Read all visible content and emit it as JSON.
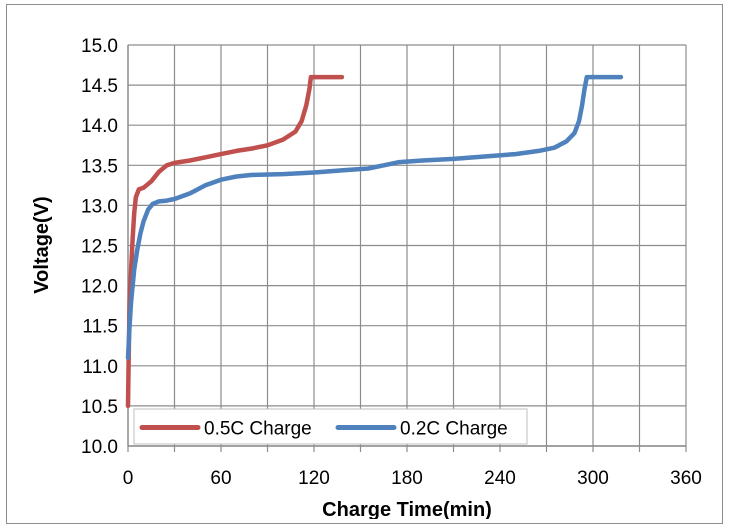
{
  "chart_data": {
    "type": "line",
    "xlabel": "Charge Time(min)",
    "ylabel": "Voltage(V)",
    "xlim": [
      0,
      360
    ],
    "ylim": [
      10.0,
      15.0
    ],
    "x_ticks": [
      "0",
      "60",
      "120",
      "180",
      "240",
      "300",
      "360"
    ],
    "y_ticks": [
      "10.0",
      "10.5",
      "11.0",
      "11.5",
      "12.0",
      "12.5",
      "13.0",
      "13.5",
      "14.0",
      "14.5",
      "15.0"
    ],
    "grid": true,
    "legend_position": "bottom-left",
    "series": [
      {
        "name": "0.5C Charge",
        "color": "#c0504d",
        "points": [
          [
            0,
            10.5
          ],
          [
            0.5,
            11.2
          ],
          [
            1,
            11.8
          ],
          [
            2,
            12.2
          ],
          [
            3,
            12.6
          ],
          [
            4,
            12.9
          ],
          [
            5,
            13.1
          ],
          [
            7,
            13.2
          ],
          [
            10,
            13.22
          ],
          [
            15,
            13.3
          ],
          [
            20,
            13.42
          ],
          [
            25,
            13.5
          ],
          [
            30,
            13.53
          ],
          [
            40,
            13.56
          ],
          [
            50,
            13.6
          ],
          [
            60,
            13.64
          ],
          [
            70,
            13.68
          ],
          [
            80,
            13.71
          ],
          [
            90,
            13.75
          ],
          [
            100,
            13.82
          ],
          [
            108,
            13.92
          ],
          [
            112,
            14.05
          ],
          [
            115,
            14.25
          ],
          [
            117,
            14.45
          ],
          [
            118,
            14.6
          ],
          [
            125,
            14.6
          ],
          [
            138,
            14.6
          ]
        ]
      },
      {
        "name": "0.2C Charge",
        "color": "#4f81bd",
        "points": [
          [
            0,
            11.1
          ],
          [
            1,
            11.5
          ],
          [
            2,
            11.8
          ],
          [
            4,
            12.2
          ],
          [
            6,
            12.45
          ],
          [
            8,
            12.65
          ],
          [
            10,
            12.8
          ],
          [
            13,
            12.95
          ],
          [
            16,
            13.02
          ],
          [
            20,
            13.05
          ],
          [
            25,
            13.06
          ],
          [
            30,
            13.08
          ],
          [
            40,
            13.15
          ],
          [
            50,
            13.25
          ],
          [
            60,
            13.32
          ],
          [
            70,
            13.36
          ],
          [
            80,
            13.38
          ],
          [
            100,
            13.39
          ],
          [
            120,
            13.41
          ],
          [
            140,
            13.44
          ],
          [
            155,
            13.46
          ],
          [
            165,
            13.5
          ],
          [
            175,
            13.54
          ],
          [
            190,
            13.56
          ],
          [
            210,
            13.58
          ],
          [
            230,
            13.61
          ],
          [
            250,
            13.64
          ],
          [
            265,
            13.68
          ],
          [
            275,
            13.72
          ],
          [
            283,
            13.8
          ],
          [
            288,
            13.9
          ],
          [
            291,
            14.05
          ],
          [
            293,
            14.25
          ],
          [
            294.5,
            14.45
          ],
          [
            296,
            14.6
          ],
          [
            305,
            14.6
          ],
          [
            318,
            14.6
          ]
        ]
      }
    ]
  }
}
